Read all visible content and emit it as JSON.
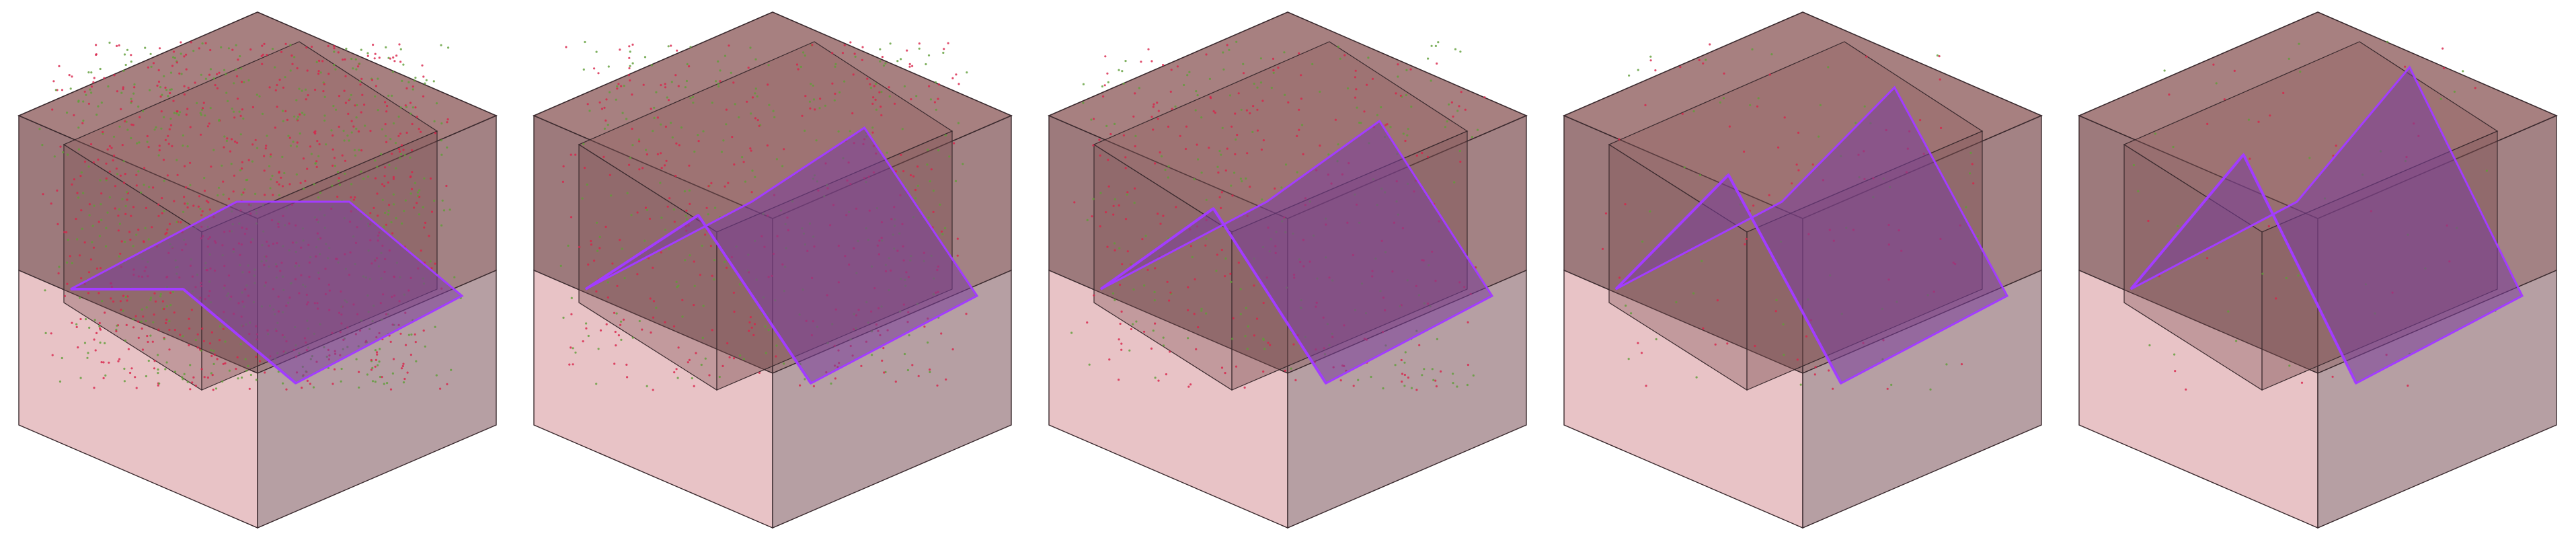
{
  "figure": {
    "panels": [
      {
        "id": "stage-1",
        "ridge": 0.0,
        "particle_density": 0.95
      },
      {
        "id": "stage-2",
        "ridge": 0.55,
        "particle_density": 0.45
      },
      {
        "id": "stage-3",
        "ridge": 0.6,
        "particle_density": 0.35
      },
      {
        "id": "stage-4",
        "ridge": 0.85,
        "particle_density": 0.1
      },
      {
        "id": "stage-5",
        "ridge": 1.0,
        "particle_density": 0.05
      }
    ],
    "colors": {
      "box_top": "#8e5c5c",
      "box_face_dark": "#7c4d50",
      "box_face_light": "#e4b8bc",
      "box_face_side": "#a98e93",
      "edge": "#3a2a2e",
      "surface": "#7a3d9a",
      "surface_edge": "#a23cff",
      "particle_red": "#d8234a",
      "particle_green": "#5f9e38"
    }
  }
}
